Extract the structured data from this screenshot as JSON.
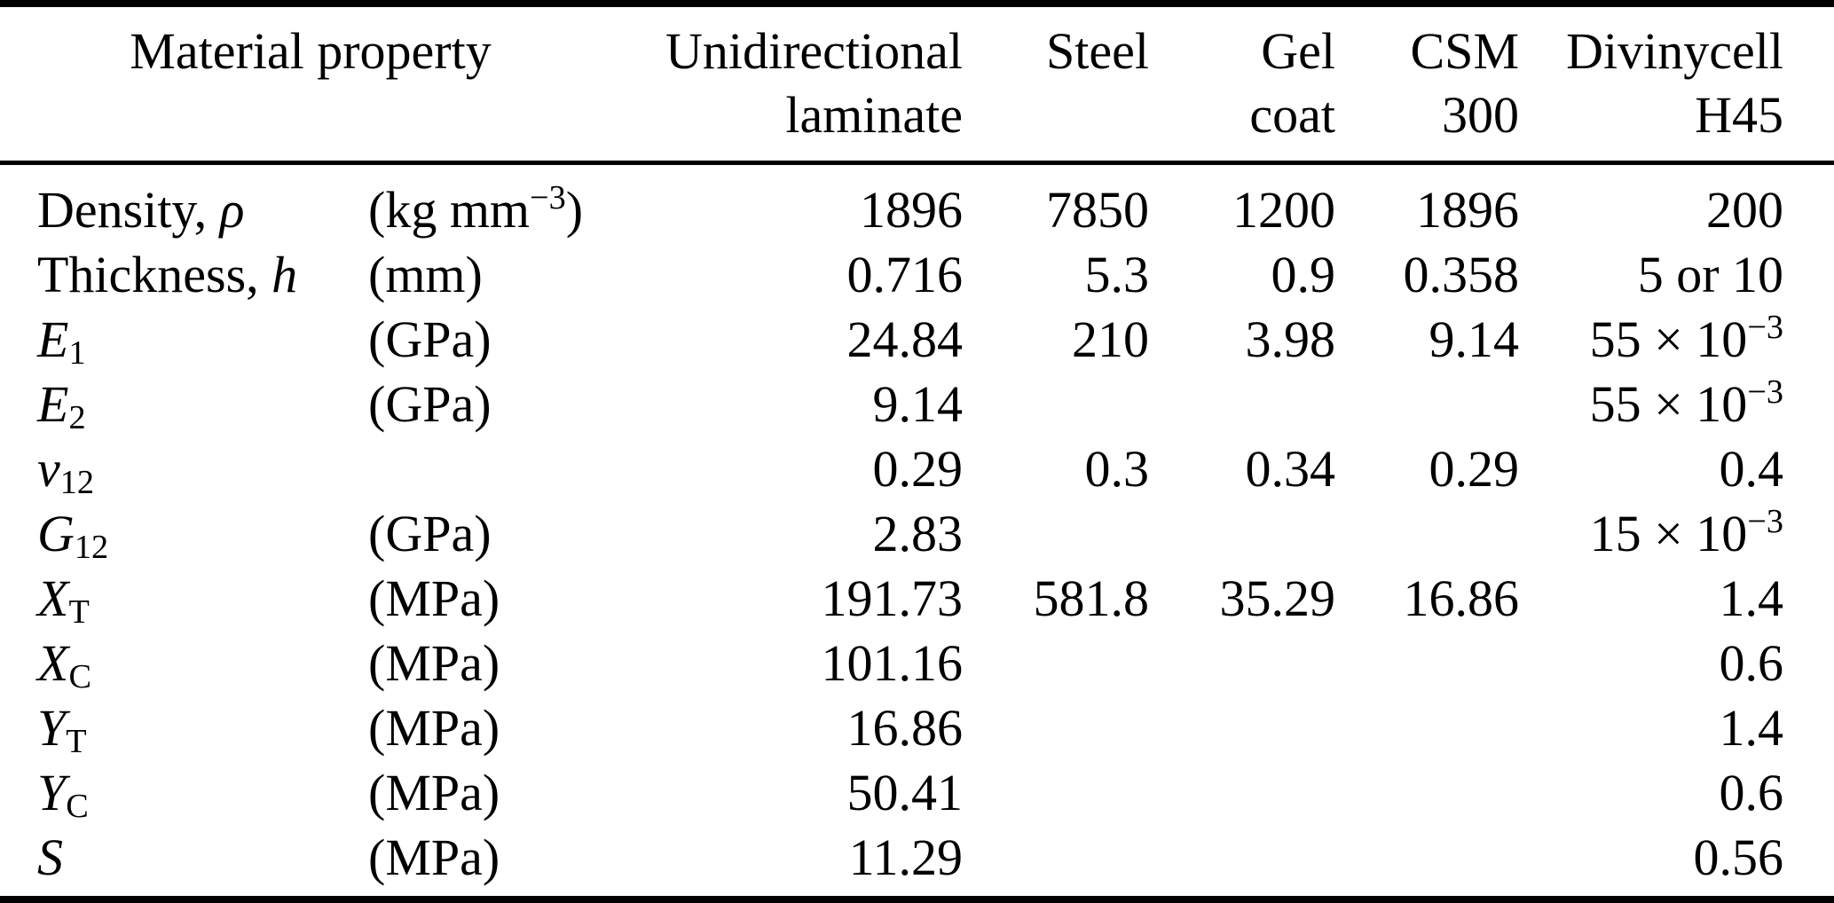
{
  "colors": {
    "background": "#ffffff",
    "text": "#000000",
    "rules": "#000000"
  },
  "table": {
    "header": {
      "property_label": "Material property",
      "columns": [
        {
          "id": "unidirectional-laminate",
          "line1": "Unidirectional",
          "line2": "laminate"
        },
        {
          "id": "steel",
          "line1": "Steel",
          "line2": ""
        },
        {
          "id": "gel-coat",
          "line1": "Gel",
          "line2": "coat"
        },
        {
          "id": "csm-300",
          "line1": "CSM",
          "line2": "300"
        },
        {
          "id": "divinycell-h45",
          "line1": "Divinycell",
          "line2": "H45"
        }
      ]
    },
    "rows": [
      {
        "id": "density",
        "property": [
          [
            "Density, ",
            "r"
          ],
          [
            "ρ",
            "i"
          ]
        ],
        "unit": [
          [
            "(kg mm",
            "r"
          ],
          [
            "−3",
            "sup"
          ],
          [
            ")",
            "r"
          ]
        ],
        "values": [
          "1896",
          "7850",
          "1200",
          "1896",
          "200"
        ]
      },
      {
        "id": "thickness",
        "property": [
          [
            "Thickness, ",
            "r"
          ],
          [
            "h",
            "i"
          ]
        ],
        "unit": [
          [
            "(mm)",
            "r"
          ]
        ],
        "values": [
          "0.716",
          "5.3",
          "0.9",
          "0.358",
          "5 or 10"
        ]
      },
      {
        "id": "e1",
        "property": [
          [
            "E",
            "i"
          ],
          [
            "1",
            "sub"
          ]
        ],
        "unit": [
          [
            "(GPa)",
            "r"
          ]
        ],
        "values": [
          "24.84",
          "210",
          "3.98",
          "9.14",
          [
            [
              "55 × 10",
              "r"
            ],
            [
              "−3",
              "sup"
            ]
          ]
        ]
      },
      {
        "id": "e2",
        "property": [
          [
            "E",
            "i"
          ],
          [
            "2",
            "sub"
          ]
        ],
        "unit": [
          [
            "(GPa)",
            "r"
          ]
        ],
        "values": [
          "9.14",
          "",
          "",
          "",
          [
            [
              "55 × 10",
              "r"
            ],
            [
              "−3",
              "sup"
            ]
          ]
        ]
      },
      {
        "id": "nu12",
        "property": [
          [
            "ν",
            "i"
          ],
          [
            "12",
            "sub"
          ]
        ],
        "unit": [],
        "values": [
          "0.29",
          "0.3",
          "0.34",
          "0.29",
          "0.4"
        ]
      },
      {
        "id": "g12",
        "property": [
          [
            "G",
            "i"
          ],
          [
            "12",
            "sub"
          ]
        ],
        "unit": [
          [
            "(GPa)",
            "r"
          ]
        ],
        "values": [
          "2.83",
          "",
          "",
          "",
          [
            [
              "15 × 10",
              "r"
            ],
            [
              "−3",
              "sup"
            ]
          ]
        ]
      },
      {
        "id": "xt",
        "property": [
          [
            "X",
            "i"
          ],
          [
            "T",
            "sub"
          ]
        ],
        "unit": [
          [
            "(MPa)",
            "r"
          ]
        ],
        "values": [
          "191.73",
          "581.8",
          "35.29",
          "16.86",
          "1.4"
        ]
      },
      {
        "id": "xc",
        "property": [
          [
            "X",
            "i"
          ],
          [
            "C",
            "sub"
          ]
        ],
        "unit": [
          [
            "(MPa)",
            "r"
          ]
        ],
        "values": [
          "101.16",
          "",
          "",
          "",
          "0.6"
        ]
      },
      {
        "id": "yt",
        "property": [
          [
            "Y",
            "i"
          ],
          [
            "T",
            "sub"
          ]
        ],
        "unit": [
          [
            "(MPa)",
            "r"
          ]
        ],
        "values": [
          "16.86",
          "",
          "",
          "",
          "1.4"
        ]
      },
      {
        "id": "yc",
        "property": [
          [
            "Y",
            "i"
          ],
          [
            "C",
            "sub"
          ]
        ],
        "unit": [
          [
            "(MPa)",
            "r"
          ]
        ],
        "values": [
          "50.41",
          "",
          "",
          "",
          "0.6"
        ]
      },
      {
        "id": "s",
        "property": [
          [
            "S",
            "i"
          ]
        ],
        "unit": [
          [
            "(MPa)",
            "r"
          ]
        ],
        "values": [
          "11.29",
          "",
          "",
          "",
          "0.56"
        ]
      }
    ]
  }
}
